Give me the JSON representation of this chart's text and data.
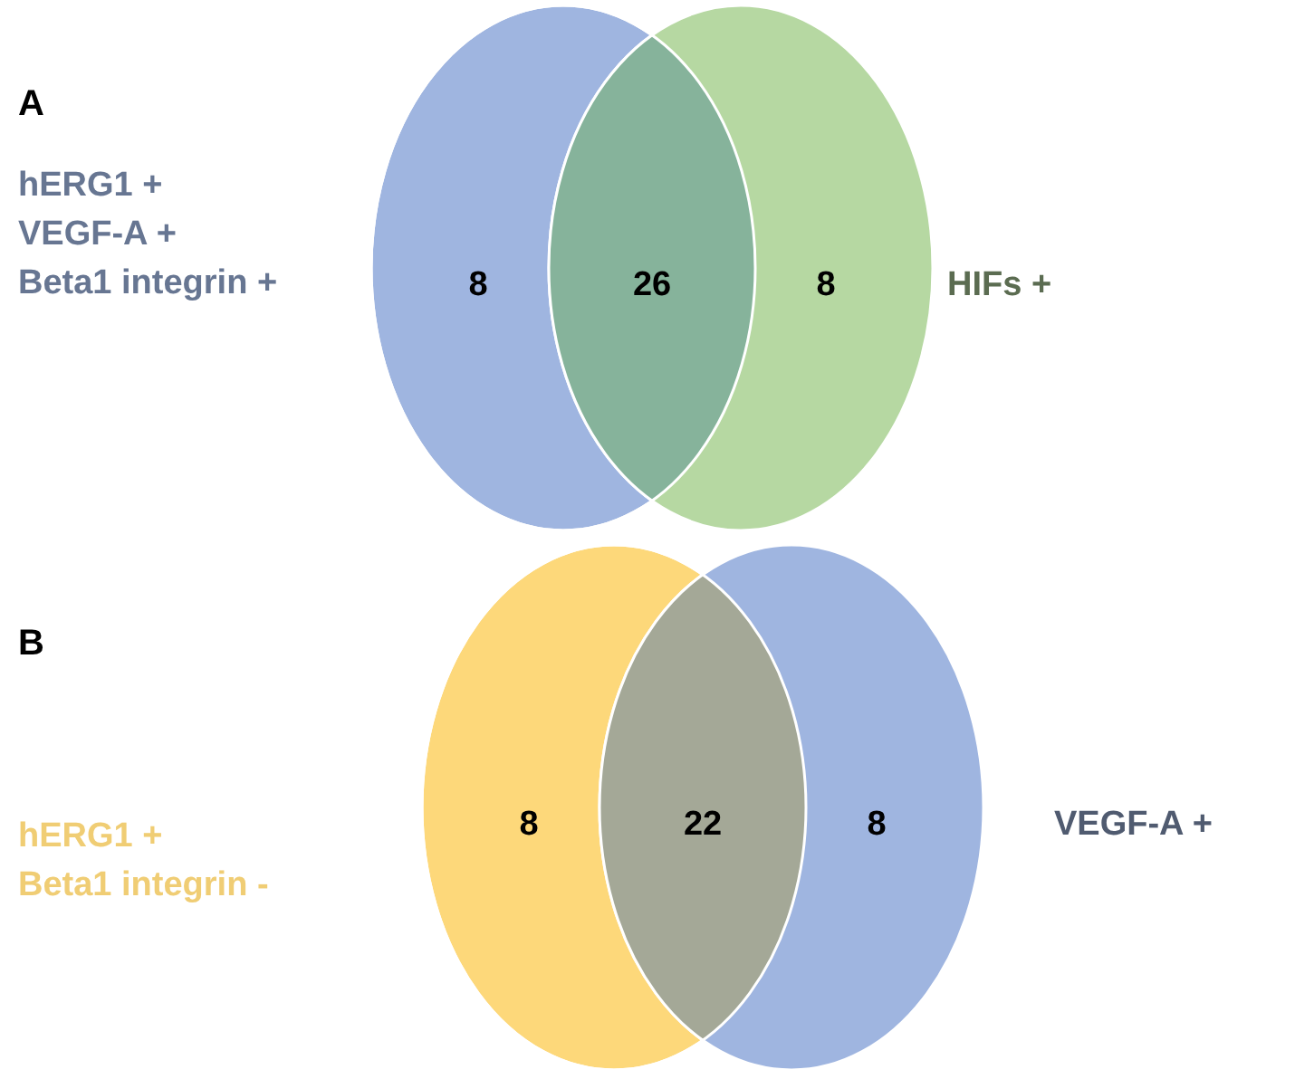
{
  "chart_data": [
    {
      "type": "other",
      "title": "A",
      "categories": [
        null,
        null,
        null
      ],
      "values": [
        8,
        26,
        8
      ],
      "colors": [
        "#9fb5e0",
        "#86b39b",
        "#b6d8a2"
      ],
      "data_labels": true,
      "annotations": [
        "hERG1 +\nVEGF-A +\nBeta1 integrin +",
        "HIFs +"
      ]
    },
    {
      "type": "other",
      "title": "B",
      "categories": [
        null,
        null,
        null
      ],
      "values": [
        8,
        22,
        8
      ],
      "colors": [
        "#fdd87a",
        "#a4a897",
        "#9fb5e0"
      ],
      "data_labels": true,
      "annotations": [
        "hERG1 +\nBeta1 integrin -",
        "VEGF-A +"
      ]
    }
  ]
}
